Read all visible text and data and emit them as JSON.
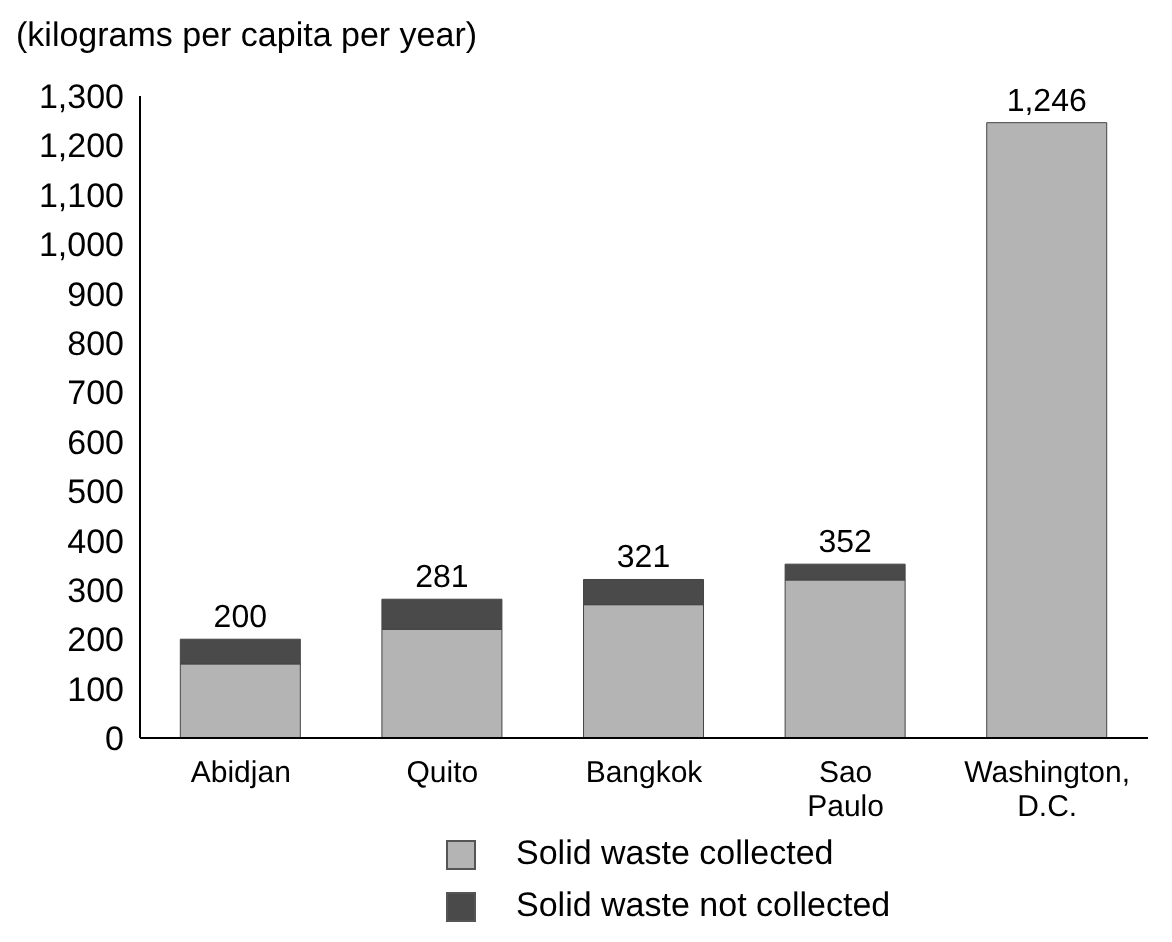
{
  "chart_data": {
    "type": "bar",
    "stacked": true,
    "ylabel": "(kilograms per capita per year)",
    "categories": [
      "Abidjan",
      "Quito",
      "Bangkok",
      "Sao Paulo",
      "Washington, D.C."
    ],
    "series": [
      {
        "name": "Solid waste collected",
        "color": "#b4b4b4",
        "values": [
          150,
          220,
          270,
          320,
          1246
        ]
      },
      {
        "name": "Solid waste not collected",
        "color": "#4a4a4a",
        "values": [
          50,
          61,
          51,
          32,
          0
        ]
      }
    ],
    "totals": [
      "200",
      "281",
      "321",
      "352",
      "1,246"
    ],
    "ylim": [
      0,
      1300
    ],
    "yticks": [
      0,
      100,
      200,
      300,
      400,
      500,
      600,
      700,
      800,
      900,
      {
        "value": 1000,
        "label": "1,000"
      },
      {
        "value": 1100,
        "label": "1,100"
      },
      {
        "value": 1200,
        "label": "1,200"
      },
      {
        "value": 1300,
        "label": "1,300"
      }
    ],
    "grid": false,
    "legend": "bottom"
  }
}
